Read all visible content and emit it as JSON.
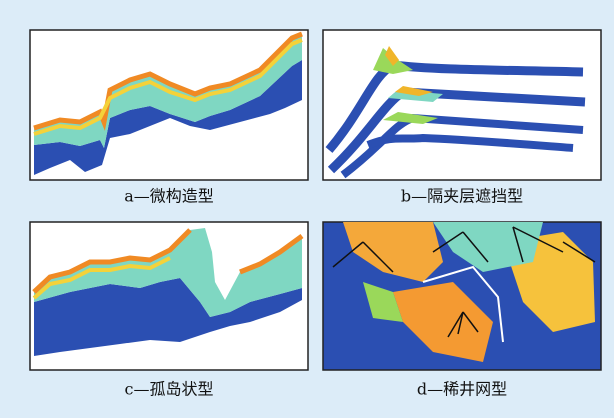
{
  "panels": [
    {
      "caption": "a—微构造型"
    },
    {
      "caption": "b—隔夹层遮挡型"
    },
    {
      "caption": "c—孤岛状型"
    },
    {
      "caption": "d—稀井网型"
    }
  ]
}
